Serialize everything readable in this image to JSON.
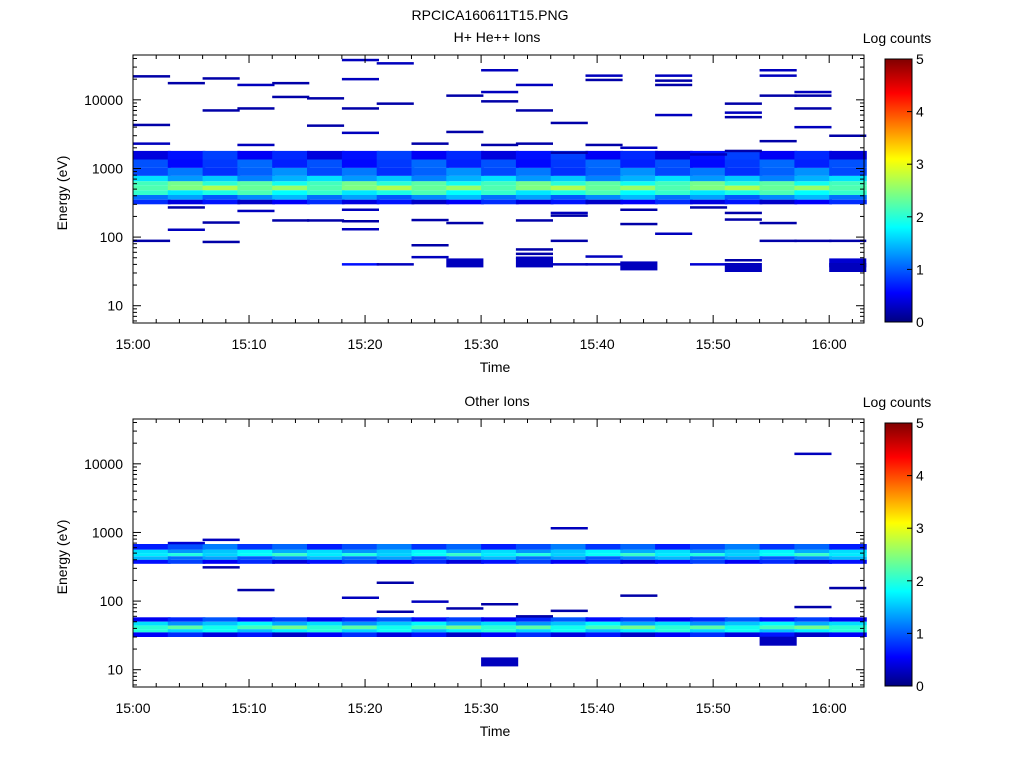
{
  "figure_title": "RPCICA160611T15.PNG",
  "chart_data": [
    {
      "type": "heatmap",
      "title": "H+ He++ Ions",
      "xlabel": "Time",
      "ylabel": "Energy (eV)",
      "x_ticks": [
        "15:00",
        "15:10",
        "15:20",
        "15:30",
        "15:40",
        "15:50",
        "16:00"
      ],
      "y_ticks": [
        "10",
        "100",
        "1000",
        "10000"
      ],
      "y_scale": "log",
      "x_range": [
        "15:00",
        "16:03"
      ],
      "y_range": [
        5.6,
        45000
      ],
      "colorbar": {
        "label": "Log counts",
        "ticks": [
          "0",
          "1",
          "2",
          "3",
          "4",
          "5"
        ],
        "range": [
          0,
          5
        ],
        "colormap": "jet"
      },
      "time_bins_start": [
        "15:00",
        "15:03",
        "15:06",
        "15:09",
        "15:12",
        "15:15",
        "15:18",
        "15:21",
        "15:24",
        "15:27",
        "15:30",
        "15:33",
        "15:36",
        "15:39",
        "15:42",
        "15:45",
        "15:48",
        "15:51",
        "15:54",
        "15:57",
        "16:00"
      ],
      "bin_width_min": 3.2,
      "main_band": [
        {
          "emin": 1350,
          "emax": 1800,
          "value": 0.7
        },
        {
          "emin": 1020,
          "emax": 1350,
          "value": 0.9
        },
        {
          "emin": 780,
          "emax": 1020,
          "value": 1.1
        },
        {
          "emin": 650,
          "emax": 780,
          "value": 1.5
        },
        {
          "emin": 560,
          "emax": 650,
          "value": 2.2
        },
        {
          "emin": 480,
          "emax": 560,
          "value": 2.5
        },
        {
          "emin": 410,
          "emax": 480,
          "value": 2.0
        },
        {
          "emin": 350,
          "emax": 410,
          "value": 1.3
        },
        {
          "emin": 300,
          "emax": 350,
          "value": 0.6
        }
      ],
      "sporadic": [
        {
          "t": "15:00",
          "e": 22000,
          "v": 0.2
        },
        {
          "t": "15:00",
          "e": 4300,
          "v": 0.2
        },
        {
          "t": "15:00",
          "e": 2300,
          "v": 0.3
        },
        {
          "t": "15:00",
          "e": 88,
          "v": 0.2
        },
        {
          "t": "15:03",
          "e": 17500,
          "v": 0.2
        },
        {
          "t": "15:03",
          "e": 270,
          "v": 0.2
        },
        {
          "t": "15:03",
          "e": 128,
          "v": 0.3
        },
        {
          "t": "15:06",
          "e": 20500,
          "v": 0.2
        },
        {
          "t": "15:06",
          "e": 7000,
          "v": 0.2
        },
        {
          "t": "15:06",
          "e": 163,
          "v": 0.2
        },
        {
          "t": "15:06",
          "e": 85,
          "v": 0.2
        },
        {
          "t": "15:09",
          "e": 16500,
          "v": 0.3
        },
        {
          "t": "15:09",
          "e": 7500,
          "v": 0.2
        },
        {
          "t": "15:09",
          "e": 2200,
          "v": 0.3
        },
        {
          "t": "15:09",
          "e": 240,
          "v": 0.3
        },
        {
          "t": "15:12",
          "e": 17500,
          "v": 0.2
        },
        {
          "t": "15:12",
          "e": 11000,
          "v": 0.2
        },
        {
          "t": "15:12",
          "e": 175,
          "v": 0.2
        },
        {
          "t": "15:15",
          "e": 10500,
          "v": 0.2
        },
        {
          "t": "15:15",
          "e": 4200,
          "v": 0.2
        },
        {
          "t": "15:15",
          "e": 175,
          "v": 0.2
        },
        {
          "t": "15:18",
          "e": 38000,
          "v": 0.3
        },
        {
          "t": "15:18",
          "e": 20000,
          "v": 0.3
        },
        {
          "t": "15:18",
          "e": 7500,
          "v": 0.2
        },
        {
          "t": "15:18",
          "e": 3300,
          "v": 0.3
        },
        {
          "t": "15:18",
          "e": 250,
          "v": 0.3
        },
        {
          "t": "15:18",
          "e": 170,
          "v": 0.2
        },
        {
          "t": "15:18",
          "e": 130,
          "v": 0.3
        },
        {
          "t": "15:18",
          "e": 40,
          "v": 0.7
        },
        {
          "t": "15:21",
          "e": 34000,
          "v": 0.3
        },
        {
          "t": "15:21",
          "e": 8800,
          "v": 0.2
        },
        {
          "t": "15:21",
          "e": 40,
          "v": 0.3
        },
        {
          "t": "15:24",
          "e": 2300,
          "v": 0.2
        },
        {
          "t": "15:24",
          "e": 177,
          "v": 0.2
        },
        {
          "t": "15:24",
          "e": 76,
          "v": 0.2
        },
        {
          "t": "15:24",
          "e": 51,
          "v": 0.3
        },
        {
          "t": "15:27",
          "e": 11500,
          "v": 0.2
        },
        {
          "t": "15:27",
          "e": 3400,
          "v": 0.2
        },
        {
          "t": "15:27",
          "e": 160,
          "v": 0.2
        },
        {
          "t": "15:27",
          "e": 42,
          "v": 0.3,
          "thick": true
        },
        {
          "t": "15:30",
          "e": 27000,
          "v": 0.3
        },
        {
          "t": "15:30",
          "e": 13000,
          "v": 0.3
        },
        {
          "t": "15:30",
          "e": 9500,
          "v": 0.2
        },
        {
          "t": "15:30",
          "e": 2200,
          "v": 0.2
        },
        {
          "t": "15:33",
          "e": 16500,
          "v": 0.3
        },
        {
          "t": "15:33",
          "e": 7000,
          "v": 0.2
        },
        {
          "t": "15:33",
          "e": 2300,
          "v": 0.2
        },
        {
          "t": "15:33",
          "e": 175,
          "v": 0.2
        },
        {
          "t": "15:33",
          "e": 66,
          "v": 0.2
        },
        {
          "t": "15:33",
          "e": 57,
          "v": 0.2
        },
        {
          "t": "15:33",
          "e": 50,
          "v": 0.3
        },
        {
          "t": "15:33",
          "e": 42,
          "v": 0.3,
          "thick": true
        },
        {
          "t": "15:36",
          "e": 4600,
          "v": 0.2
        },
        {
          "t": "15:36",
          "e": 1700,
          "v": 0.2
        },
        {
          "t": "15:36",
          "e": 225,
          "v": 0.3
        },
        {
          "t": "15:36",
          "e": 205,
          "v": 0.2
        },
        {
          "t": "15:36",
          "e": 88,
          "v": 0.2
        },
        {
          "t": "15:36",
          "e": 40,
          "v": 0.3
        },
        {
          "t": "15:39",
          "e": 22500,
          "v": 0.3
        },
        {
          "t": "15:39",
          "e": 19500,
          "v": 0.2
        },
        {
          "t": "15:39",
          "e": 2200,
          "v": 0.2
        },
        {
          "t": "15:39",
          "e": 52,
          "v": 0.3
        },
        {
          "t": "15:39",
          "e": 40,
          "v": 0.3
        },
        {
          "t": "15:42",
          "e": 2000,
          "v": 0.3
        },
        {
          "t": "15:42",
          "e": 250,
          "v": 0.2
        },
        {
          "t": "15:42",
          "e": 155,
          "v": 0.2
        },
        {
          "t": "15:42",
          "e": 38,
          "v": 0.3,
          "thick": true
        },
        {
          "t": "15:45",
          "e": 22500,
          "v": 0.3
        },
        {
          "t": "15:45",
          "e": 19000,
          "v": 0.2
        },
        {
          "t": "15:45",
          "e": 16500,
          "v": 0.2
        },
        {
          "t": "15:45",
          "e": 6000,
          "v": 0.3
        },
        {
          "t": "15:45",
          "e": 112,
          "v": 0.3
        },
        {
          "t": "15:48",
          "e": 1600,
          "v": 0.3
        },
        {
          "t": "15:48",
          "e": 270,
          "v": 0.2
        },
        {
          "t": "15:48",
          "e": 40,
          "v": 0.4
        },
        {
          "t": "15:51",
          "e": 8800,
          "v": 0.2
        },
        {
          "t": "15:51",
          "e": 6500,
          "v": 0.3
        },
        {
          "t": "15:51",
          "e": 5600,
          "v": 0.2
        },
        {
          "t": "15:51",
          "e": 1800,
          "v": 0.2
        },
        {
          "t": "15:51",
          "e": 225,
          "v": 0.2
        },
        {
          "t": "15:51",
          "e": 180,
          "v": 0.2
        },
        {
          "t": "15:51",
          "e": 46,
          "v": 0.2
        },
        {
          "t": "15:51",
          "e": 36,
          "v": 0.3,
          "thick": true
        },
        {
          "t": "15:54",
          "e": 27000,
          "v": 0.3
        },
        {
          "t": "15:54",
          "e": 22500,
          "v": 0.3
        },
        {
          "t": "15:54",
          "e": 11500,
          "v": 0.2
        },
        {
          "t": "15:54",
          "e": 2500,
          "v": 0.2
        },
        {
          "t": "15:54",
          "e": 160,
          "v": 0.2
        },
        {
          "t": "15:54",
          "e": 88,
          "v": 0.2
        },
        {
          "t": "15:57",
          "e": 13000,
          "v": 0.3
        },
        {
          "t": "15:57",
          "e": 11500,
          "v": 0.2
        },
        {
          "t": "15:57",
          "e": 7500,
          "v": 0.2
        },
        {
          "t": "15:57",
          "e": 4000,
          "v": 0.3
        },
        {
          "t": "15:57",
          "e": 88,
          "v": 0.2
        },
        {
          "t": "16:00",
          "e": 3000,
          "v": 0.2
        },
        {
          "t": "16:00",
          "e": 88,
          "v": 0.2
        },
        {
          "t": "16:00",
          "e": 42,
          "v": 0.4,
          "thick": true
        },
        {
          "t": "16:00",
          "e": 36,
          "v": 0.3,
          "thick": true
        }
      ]
    },
    {
      "type": "heatmap",
      "title": "Other Ions",
      "xlabel": "Time",
      "ylabel": "Energy (eV)",
      "x_ticks": [
        "15:00",
        "15:10",
        "15:20",
        "15:30",
        "15:40",
        "15:50",
        "16:00"
      ],
      "y_ticks": [
        "10",
        "100",
        "1000",
        "10000"
      ],
      "y_scale": "log",
      "x_range": [
        "15:00",
        "16:03"
      ],
      "y_range": [
        5.6,
        45000
      ],
      "colorbar": {
        "label": "Log counts",
        "ticks": [
          "0",
          "1",
          "2",
          "3",
          "4",
          "5"
        ],
        "range": [
          0,
          5
        ],
        "colormap": "jet"
      },
      "time_bins_start": [
        "15:00",
        "15:03",
        "15:06",
        "15:09",
        "15:12",
        "15:15",
        "15:18",
        "15:21",
        "15:24",
        "15:27",
        "15:30",
        "15:33",
        "15:36",
        "15:39",
        "15:42",
        "15:45",
        "15:48",
        "15:51",
        "15:54",
        "15:57",
        "16:00"
      ],
      "bin_width_min": 3.2,
      "main_band": [
        {
          "emin": 560,
          "emax": 680,
          "value": 1.0
        },
        {
          "emin": 500,
          "emax": 560,
          "value": 1.6
        },
        {
          "emin": 450,
          "emax": 500,
          "value": 1.9
        },
        {
          "emin": 400,
          "emax": 450,
          "value": 1.3
        },
        {
          "emin": 350,
          "emax": 400,
          "value": 0.7
        },
        {
          "emin": 50,
          "emax": 58,
          "value": 0.8
        },
        {
          "emin": 44,
          "emax": 50,
          "value": 1.6
        },
        {
          "emin": 39,
          "emax": 44,
          "value": 2.2
        },
        {
          "emin": 35,
          "emax": 39,
          "value": 1.8
        },
        {
          "emin": 30,
          "emax": 35,
          "value": 0.6
        }
      ],
      "sporadic": [
        {
          "t": "15:03",
          "e": 700,
          "v": 0.4
        },
        {
          "t": "15:06",
          "e": 780,
          "v": 0.3
        },
        {
          "t": "15:06",
          "e": 310,
          "v": 0.2
        },
        {
          "t": "15:09",
          "e": 145,
          "v": 0.2
        },
        {
          "t": "15:18",
          "e": 112,
          "v": 0.3
        },
        {
          "t": "15:21",
          "e": 185,
          "v": 0.2
        },
        {
          "t": "15:21",
          "e": 70,
          "v": 0.2
        },
        {
          "t": "15:24",
          "e": 98,
          "v": 0.3
        },
        {
          "t": "15:27",
          "e": 78,
          "v": 0.2
        },
        {
          "t": "15:30",
          "e": 90,
          "v": 0.2
        },
        {
          "t": "15:30",
          "e": 13,
          "v": 0.3,
          "thick": true
        },
        {
          "t": "15:33",
          "e": 60,
          "v": 0.2
        },
        {
          "t": "15:36",
          "e": 1150,
          "v": 0.3
        },
        {
          "t": "15:36",
          "e": 72,
          "v": 0.2
        },
        {
          "t": "15:42",
          "e": 120,
          "v": 0.2
        },
        {
          "t": "15:54",
          "e": 26,
          "v": 0.3,
          "thick": true
        },
        {
          "t": "15:57",
          "e": 14000,
          "v": 0.3
        },
        {
          "t": "15:57",
          "e": 82,
          "v": 0.2
        },
        {
          "t": "16:00",
          "e": 155,
          "v": 0.2
        }
      ]
    }
  ]
}
